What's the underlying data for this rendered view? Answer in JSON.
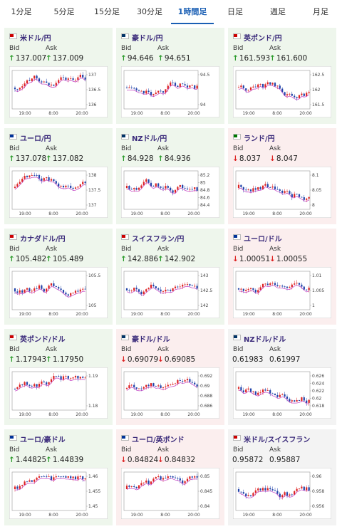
{
  "tabs": [
    "1分足",
    "5分足",
    "15分足",
    "30分足",
    "1時間足",
    "日足",
    "週足",
    "月足"
  ],
  "active_tab": 4,
  "labels": {
    "bid": "Bid",
    "ask": "Ask"
  },
  "chart_xlabels": [
    "19:00",
    "8:00",
    "20:00"
  ],
  "cards": [
    {
      "name": "米ドル/円",
      "bid": "137.007",
      "ask": "137.009",
      "dir": "up",
      "yticks": [
        "137",
        "136.5",
        "136"
      ]
    },
    {
      "name": "豪ドル/円",
      "bid": "94.646",
      "ask": "94.651",
      "dir": "up",
      "yticks": [
        "94.5",
        "94"
      ]
    },
    {
      "name": "英ポンド/円",
      "bid": "161.593",
      "ask": "161.600",
      "dir": "up",
      "yticks": [
        "162.5",
        "162",
        "161.5"
      ]
    },
    {
      "name": "ユーロ/円",
      "bid": "137.078",
      "ask": "137.082",
      "dir": "up",
      "yticks": [
        "138",
        "137.5",
        "137"
      ]
    },
    {
      "name": "NZドル/円",
      "bid": "84.928",
      "ask": "84.936",
      "dir": "up",
      "yticks": [
        "85.2",
        "85",
        "84.8",
        "84.6",
        "84.4"
      ]
    },
    {
      "name": "ランド/円",
      "bid": "8.037",
      "ask": "8.047",
      "dir": "down",
      "yticks": [
        "8.1",
        "8.05",
        "8"
      ]
    },
    {
      "name": "カナダドル/円",
      "bid": "105.482",
      "ask": "105.489",
      "dir": "up",
      "yticks": [
        "105.5",
        "105"
      ]
    },
    {
      "name": "スイスフラン/円",
      "bid": "142.886",
      "ask": "142.902",
      "dir": "up",
      "yticks": [
        "143",
        "142.5",
        "142"
      ]
    },
    {
      "name": "ユーロ/ドル",
      "bid": "1.00051",
      "ask": "1.00055",
      "dir": "down",
      "yticks": [
        "1.01",
        "1.005",
        "1"
      ]
    },
    {
      "name": "英ポンド/ドル",
      "bid": "1.17943",
      "ask": "1.17950",
      "dir": "up",
      "yticks": [
        "1.19",
        "1.18"
      ]
    },
    {
      "name": "豪ドル/ドル",
      "bid": "0.69079",
      "ask": "0.69085",
      "dir": "down",
      "yticks": [
        "0.692",
        "0.69",
        "0.688",
        "0.686"
      ]
    },
    {
      "name": "NZドル/ドル",
      "bid": "0.61983",
      "ask": "0.61997",
      "dir": null,
      "yticks": [
        "0.626",
        "0.624",
        "0.622",
        "0.62",
        "0.618"
      ]
    },
    {
      "name": "ユーロ/豪ドル",
      "bid": "1.44825",
      "ask": "1.44839",
      "dir": "up",
      "yticks": [
        "1.46",
        "1.455",
        "1.45"
      ]
    },
    {
      "name": "ユーロ/英ポンド",
      "bid": "0.84824",
      "ask": "0.84832",
      "dir": "down",
      "yticks": [
        "0.85",
        "0.845",
        "0.84"
      ]
    },
    {
      "name": "米ドル/スイスフラン",
      "bid": "0.95872",
      "ask": "0.95887",
      "dir": null,
      "yticks": [
        "0.96",
        "0.958",
        "0.956"
      ]
    }
  ]
}
